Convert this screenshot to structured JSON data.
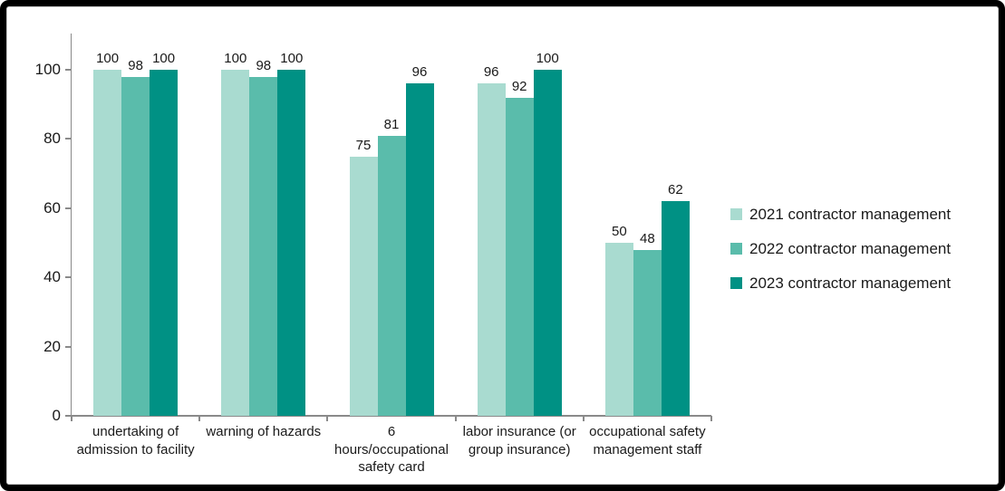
{
  "chart_data": {
    "type": "bar",
    "title": "",
    "xlabel": "",
    "ylabel": "",
    "ylim": [
      0,
      100
    ],
    "yticks": [
      0,
      20,
      40,
      60,
      80,
      100
    ],
    "grid": false,
    "legend_position": "right",
    "categories": [
      "undertaking of\nadmission to facility",
      "warning of hazards",
      "6\nhours/occupational\nsafety card",
      "labor insurance (or\ngroup insurance)",
      "occupational safety\nmanagement staff"
    ],
    "series": [
      {
        "name": "2021 contractor management",
        "color": "#A9DBD0",
        "values": [
          100,
          100,
          75,
          96,
          50
        ]
      },
      {
        "name": "2022 contractor management",
        "color": "#5ABCAB",
        "values": [
          98,
          98,
          81,
          92,
          48
        ]
      },
      {
        "name": "2023 contractor management",
        "color": "#009184",
        "values": [
          100,
          100,
          96,
          100,
          62
        ]
      }
    ],
    "data_labels_shown": true,
    "axis_color": "#8a8a8a",
    "text_color": "#1a1a1a"
  }
}
